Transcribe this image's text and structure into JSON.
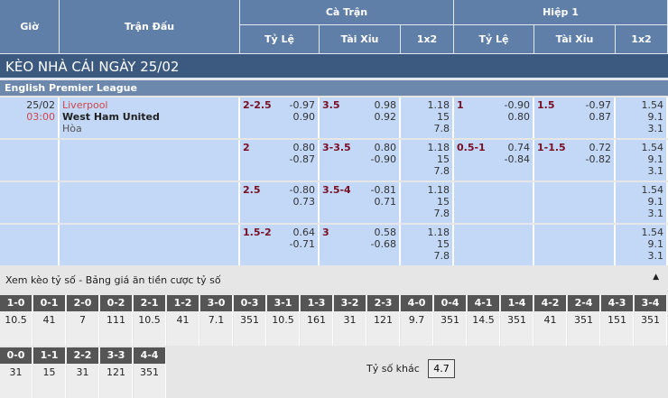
{
  "header": {
    "time": "Giờ",
    "match": "Trận Đấu",
    "full": "Cà Trận",
    "half": "Hiệp 1",
    "handicap": "Tỷ Lệ",
    "overunder": "Tài Xỉu",
    "x12": "1x2"
  },
  "title": "KÈO NHÀ CÁI NGÀY 25/02",
  "league": "English Premier League",
  "match": {
    "date": "25/02",
    "time": "03:00",
    "home": "Liverpool",
    "away": "West Ham United",
    "draw": "Hòa"
  },
  "rows": [
    {
      "ft_hc": "2-2.5",
      "ft_hc_o": [
        "-0.97",
        "0.90"
      ],
      "ft_ou": "3.5",
      "ft_ou_o": [
        "0.98",
        "0.92"
      ],
      "ft_1x2": [
        "1.18",
        "15",
        "7.8"
      ],
      "h1_hc": "1",
      "h1_hc_o": [
        "-0.90",
        "0.80"
      ],
      "h1_ou": "1.5",
      "h1_ou_o": [
        "-0.97",
        "0.87"
      ],
      "h1_1x2": [
        "1.54",
        "9.1",
        "3.1"
      ]
    },
    {
      "ft_hc": "2",
      "ft_hc_o": [
        "0.80",
        "-0.87"
      ],
      "ft_ou": "3-3.5",
      "ft_ou_o": [
        "0.80",
        "-0.90"
      ],
      "ft_1x2": [
        "1.18",
        "15",
        "7.8"
      ],
      "h1_hc": "0.5-1",
      "h1_hc_o": [
        "0.74",
        "-0.84"
      ],
      "h1_ou": "1-1.5",
      "h1_ou_o": [
        "0.72",
        "-0.82"
      ],
      "h1_1x2": [
        "1.54",
        "9.1",
        "3.1"
      ]
    },
    {
      "ft_hc": "2.5",
      "ft_hc_o": [
        "-0.80",
        "0.73"
      ],
      "ft_ou": "3.5-4",
      "ft_ou_o": [
        "-0.81",
        "0.71"
      ],
      "ft_1x2": [
        "1.18",
        "15",
        "7.8"
      ],
      "h1_hc": "",
      "h1_hc_o": [
        "",
        ""
      ],
      "h1_ou": "",
      "h1_ou_o": [
        "",
        ""
      ],
      "h1_1x2": [
        "1.54",
        "9.1",
        "3.1"
      ]
    },
    {
      "ft_hc": "1.5-2",
      "ft_hc_o": [
        "0.64",
        "-0.71"
      ],
      "ft_ou": "3",
      "ft_ou_o": [
        "0.58",
        "-0.68"
      ],
      "ft_1x2": [
        "1.18",
        "15",
        "7.8"
      ],
      "h1_hc": "",
      "h1_hc_o": [
        "",
        ""
      ],
      "h1_ou": "",
      "h1_ou_o": [
        "",
        ""
      ],
      "h1_1x2": [
        "1.54",
        "9.1",
        "3.1"
      ]
    }
  ],
  "scores": {
    "heading": "Xem kèo tỷ số - Bảng giá ăn tiền cược tỷ số",
    "row1": [
      [
        "1-0",
        "10.5"
      ],
      [
        "0-1",
        "41"
      ],
      [
        "2-0",
        "7"
      ],
      [
        "0-2",
        "111"
      ],
      [
        "2-1",
        "10.5"
      ],
      [
        "1-2",
        "41"
      ],
      [
        "3-0",
        "7.1"
      ],
      [
        "0-3",
        "351"
      ],
      [
        "3-1",
        "10.5"
      ],
      [
        "1-3",
        "161"
      ],
      [
        "3-2",
        "31"
      ],
      [
        "2-3",
        "121"
      ],
      [
        "4-0",
        "9.7"
      ],
      [
        "0-4",
        "351"
      ],
      [
        "4-1",
        "14.5"
      ],
      [
        "1-4",
        "351"
      ],
      [
        "4-2",
        "41"
      ],
      [
        "2-4",
        "351"
      ],
      [
        "4-3",
        "151"
      ],
      [
        "3-4",
        "351"
      ]
    ],
    "row2": [
      [
        "0-0",
        "31"
      ],
      [
        "1-1",
        "15"
      ],
      [
        "2-2",
        "31"
      ],
      [
        "3-3",
        "121"
      ],
      [
        "4-4",
        "351"
      ]
    ],
    "other_label": "Tỷ số khác",
    "other_value": "4.7"
  }
}
